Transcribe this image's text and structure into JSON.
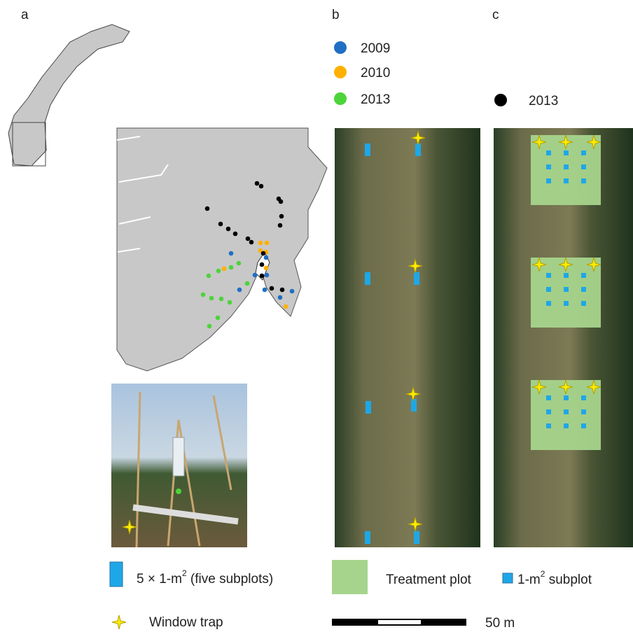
{
  "panels": {
    "a": "a",
    "b": "b",
    "c": "c"
  },
  "year_legend": [
    {
      "label": "2009",
      "color": "#1f6fc4"
    },
    {
      "label": "2010",
      "color": "#ffb000"
    },
    {
      "label": "2013",
      "color": "#4cd43a"
    },
    {
      "label": "2013",
      "color": "#000000"
    }
  ],
  "bottom_legend": {
    "subplots": {
      "parts": [
        "5 × 1-m",
        "2",
        " (five subplots)"
      ]
    },
    "treatment_plot": "Treatment plot",
    "subplot": {
      "parts": [
        "1-m",
        "2",
        " subplot"
      ]
    },
    "window_trap": "Window trap",
    "scale": "50 m"
  }
}
